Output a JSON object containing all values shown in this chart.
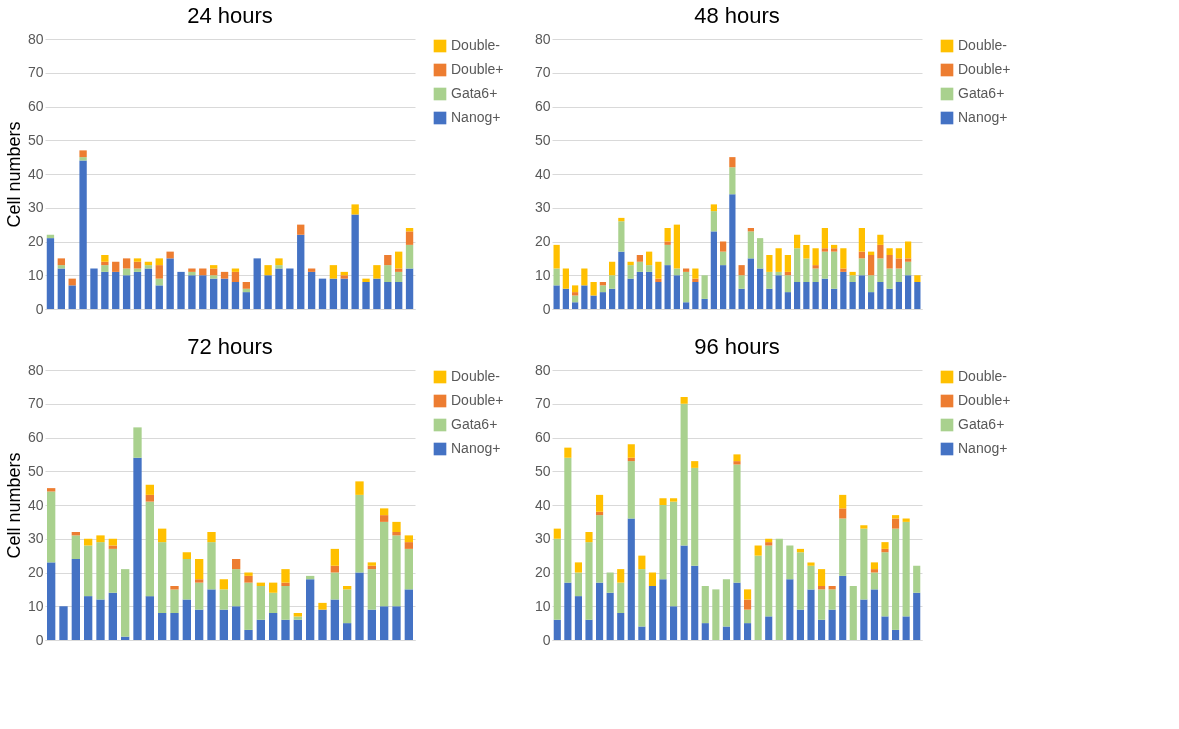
{
  "chart_data": [
    {
      "type": "bar",
      "title": "24 hours",
      "ylabel": "Cell numbers",
      "stacked": true,
      "ylim": [
        0,
        80
      ],
      "yticks": [
        0,
        10,
        20,
        30,
        40,
        50,
        60,
        70,
        80
      ],
      "grid": "y",
      "legend": "right",
      "categories": [
        null,
        null,
        null,
        null,
        null,
        null,
        null,
        null,
        null,
        null,
        null,
        null,
        null,
        null,
        null,
        null,
        null,
        null,
        null,
        null,
        null,
        null,
        null,
        null,
        null,
        null,
        null,
        null,
        null,
        null,
        null,
        null,
        null,
        null
      ],
      "series": [
        {
          "name": "Nanog+",
          "color": "#4472c4",
          "values": [
            21,
            12,
            7,
            44,
            12,
            11,
            11,
            10,
            11,
            12,
            7,
            15,
            11,
            10,
            10,
            9,
            9,
            8,
            5,
            15,
            10,
            12,
            12,
            22,
            11,
            9,
            9,
            9,
            28,
            8,
            9,
            8,
            8,
            12
          ]
        },
        {
          "name": "Gata6+",
          "color": "#a9d18e",
          "values": [
            1,
            1,
            0,
            1,
            0,
            2,
            0,
            2,
            1,
            1,
            2,
            0,
            0,
            1,
            0,
            1,
            0,
            0,
            1,
            0,
            0,
            1,
            0,
            0,
            0,
            0,
            0,
            0,
            0,
            0,
            0,
            5,
            3,
            7
          ]
        },
        {
          "name": "Double+",
          "color": "#ed7d31",
          "values": [
            0,
            2,
            2,
            2,
            0,
            1,
            3,
            3,
            2,
            0,
            4,
            2,
            0,
            1,
            2,
            2,
            2,
            3,
            2,
            0,
            0,
            0,
            0,
            3,
            1,
            0,
            0,
            1,
            0,
            0,
            0,
            3,
            1,
            4
          ]
        },
        {
          "name": "Double-",
          "color": "#ffc000",
          "values": [
            0,
            0,
            0,
            0,
            0,
            2,
            0,
            0,
            1,
            1,
            2,
            0,
            0,
            0,
            0,
            1,
            0,
            1,
            0,
            0,
            3,
            2,
            0,
            0,
            0,
            0,
            4,
            1,
            3,
            1,
            4,
            0,
            5,
            1
          ]
        }
      ]
    },
    {
      "type": "bar",
      "title": "48 hours",
      "stacked": true,
      "ylim": [
        0,
        80
      ],
      "yticks": [
        0,
        10,
        20,
        30,
        40,
        50,
        60,
        70,
        80
      ],
      "grid": "y",
      "legend": "right",
      "categories": [
        null,
        null,
        null,
        null,
        null,
        null,
        null,
        null,
        null,
        null,
        null,
        null,
        null,
        null,
        null,
        null,
        null,
        null,
        null,
        null,
        null,
        null,
        null,
        null,
        null,
        null,
        null,
        null,
        null,
        null,
        null,
        null,
        null,
        null,
        null,
        null,
        null,
        null,
        null,
        null
      ],
      "series": [
        {
          "name": "Nanog+",
          "color": "#4472c4",
          "values": [
            7,
            6,
            2,
            7,
            4,
            5,
            6,
            17,
            9,
            11,
            11,
            8,
            13,
            10,
            2,
            8,
            3,
            23,
            13,
            34,
            6,
            15,
            12,
            6,
            10,
            5,
            8,
            8,
            8,
            9,
            6,
            11,
            8,
            10,
            5,
            8,
            6,
            8,
            10,
            8
          ]
        },
        {
          "name": "Gata6+",
          "color": "#a9d18e",
          "values": [
            5,
            0,
            2,
            0,
            0,
            2,
            4,
            9,
            4,
            3,
            2,
            0,
            6,
            2,
            9,
            0,
            7,
            6,
            4,
            8,
            4,
            8,
            9,
            5,
            1,
            5,
            10,
            7,
            4,
            8,
            11,
            0,
            2,
            5,
            5,
            7,
            6,
            4,
            4,
            0
          ]
        },
        {
          "name": "Double+",
          "color": "#ed7d31",
          "values": [
            0,
            0,
            1,
            0,
            0,
            1,
            0,
            0,
            0,
            2,
            0,
            1,
            1,
            0,
            1,
            1,
            0,
            0,
            3,
            3,
            3,
            1,
            0,
            0,
            0,
            1,
            0,
            0,
            1,
            1,
            1,
            1,
            0,
            2,
            6,
            4,
            4,
            3,
            1,
            0
          ]
        },
        {
          "name": "Double-",
          "color": "#ffc000",
          "values": [
            7,
            6,
            2,
            5,
            4,
            0,
            4,
            1,
            1,
            0,
            4,
            5,
            4,
            13,
            0,
            3,
            0,
            2,
            0,
            0,
            0,
            0,
            0,
            5,
            7,
            5,
            4,
            4,
            5,
            6,
            1,
            6,
            1,
            7,
            1,
            3,
            2,
            3,
            5,
            2
          ]
        }
      ]
    },
    {
      "type": "bar",
      "title": "72 hours",
      "ylabel": "Cell numbers",
      "stacked": true,
      "ylim": [
        0,
        80
      ],
      "yticks": [
        0,
        10,
        20,
        30,
        40,
        50,
        60,
        70,
        80
      ],
      "grid": "y",
      "legend": "right",
      "categories": [
        null,
        null,
        null,
        null,
        null,
        null,
        null,
        null,
        null,
        null,
        null,
        null,
        null,
        null,
        null,
        null,
        null,
        null,
        null,
        null,
        null,
        null,
        null,
        null,
        null,
        null,
        null,
        null,
        null,
        null
      ],
      "series": [
        {
          "name": "Nanog+",
          "color": "#4472c4",
          "values": [
            23,
            10,
            24,
            13,
            12,
            14,
            1,
            54,
            13,
            8,
            8,
            12,
            9,
            15,
            9,
            10,
            3,
            6,
            8,
            6,
            6,
            18,
            9,
            12,
            5,
            20,
            9,
            10,
            10,
            15
          ]
        },
        {
          "name": "Gata6+",
          "color": "#a9d18e",
          "values": [
            21,
            0,
            7,
            15,
            17,
            13,
            20,
            9,
            28,
            21,
            7,
            12,
            8,
            14,
            6,
            11,
            14,
            10,
            6,
            10,
            1,
            1,
            0,
            8,
            10,
            23,
            12,
            25,
            21,
            12
          ]
        },
        {
          "name": "Double+",
          "color": "#ed7d31",
          "values": [
            1,
            0,
            1,
            0,
            0,
            1,
            0,
            0,
            2,
            0,
            1,
            0,
            1,
            0,
            0,
            3,
            2,
            0,
            0,
            1,
            0,
            0,
            0,
            2,
            0,
            0,
            1,
            2,
            1,
            2
          ]
        },
        {
          "name": "Double-",
          "color": "#ffc000",
          "values": [
            0,
            0,
            0,
            2,
            2,
            2,
            0,
            0,
            3,
            4,
            0,
            2,
            6,
            3,
            3,
            0,
            1,
            1,
            3,
            4,
            1,
            0,
            2,
            5,
            1,
            4,
            1,
            2,
            3,
            2
          ]
        }
      ]
    },
    {
      "type": "bar",
      "title": "96 hours",
      "stacked": true,
      "ylim": [
        0,
        80
      ],
      "yticks": [
        0,
        10,
        20,
        30,
        40,
        50,
        60,
        70,
        80
      ],
      "grid": "y",
      "legend": "right",
      "categories": [
        null,
        null,
        null,
        null,
        null,
        null,
        null,
        null,
        null,
        null,
        null,
        null,
        null,
        null,
        null,
        null,
        null,
        null,
        null,
        null,
        null,
        null,
        null,
        null,
        null,
        null,
        null,
        null,
        null,
        null,
        null,
        null,
        null,
        null,
        null
      ],
      "series": [
        {
          "name": "Nanog+",
          "color": "#4472c4",
          "values": [
            6,
            17,
            13,
            6,
            17,
            14,
            8,
            36,
            4,
            16,
            18,
            10,
            28,
            22,
            5,
            0,
            4,
            17,
            5,
            0,
            7,
            0,
            18,
            9,
            15,
            6,
            9,
            19,
            0,
            12,
            15,
            7,
            3,
            7,
            14
          ]
        },
        {
          "name": "Gata6+",
          "color": "#a9d18e",
          "values": [
            24,
            37,
            7,
            23,
            20,
            6,
            9,
            17,
            17,
            0,
            22,
            31,
            42,
            29,
            11,
            15,
            14,
            35,
            4,
            25,
            21,
            30,
            10,
            17,
            7,
            9,
            6,
            17,
            16,
            21,
            5,
            19,
            30,
            28,
            8
          ]
        },
        {
          "name": "Double+",
          "color": "#ed7d31",
          "values": [
            0,
            0,
            0,
            0,
            1,
            0,
            0,
            1,
            0,
            0,
            0,
            0,
            0,
            0,
            0,
            0,
            0,
            1,
            3,
            0,
            1,
            0,
            0,
            0,
            0,
            1,
            1,
            3,
            0,
            0,
            1,
            1,
            3,
            0,
            0
          ]
        },
        {
          "name": "Double-",
          "color": "#ffc000",
          "values": [
            3,
            3,
            3,
            3,
            5,
            0,
            4,
            4,
            4,
            4,
            2,
            1,
            2,
            2,
            0,
            0,
            0,
            2,
            3,
            3,
            1,
            0,
            0,
            1,
            1,
            5,
            0,
            4,
            0,
            1,
            2,
            2,
            1,
            1,
            0
          ]
        }
      ]
    }
  ]
}
